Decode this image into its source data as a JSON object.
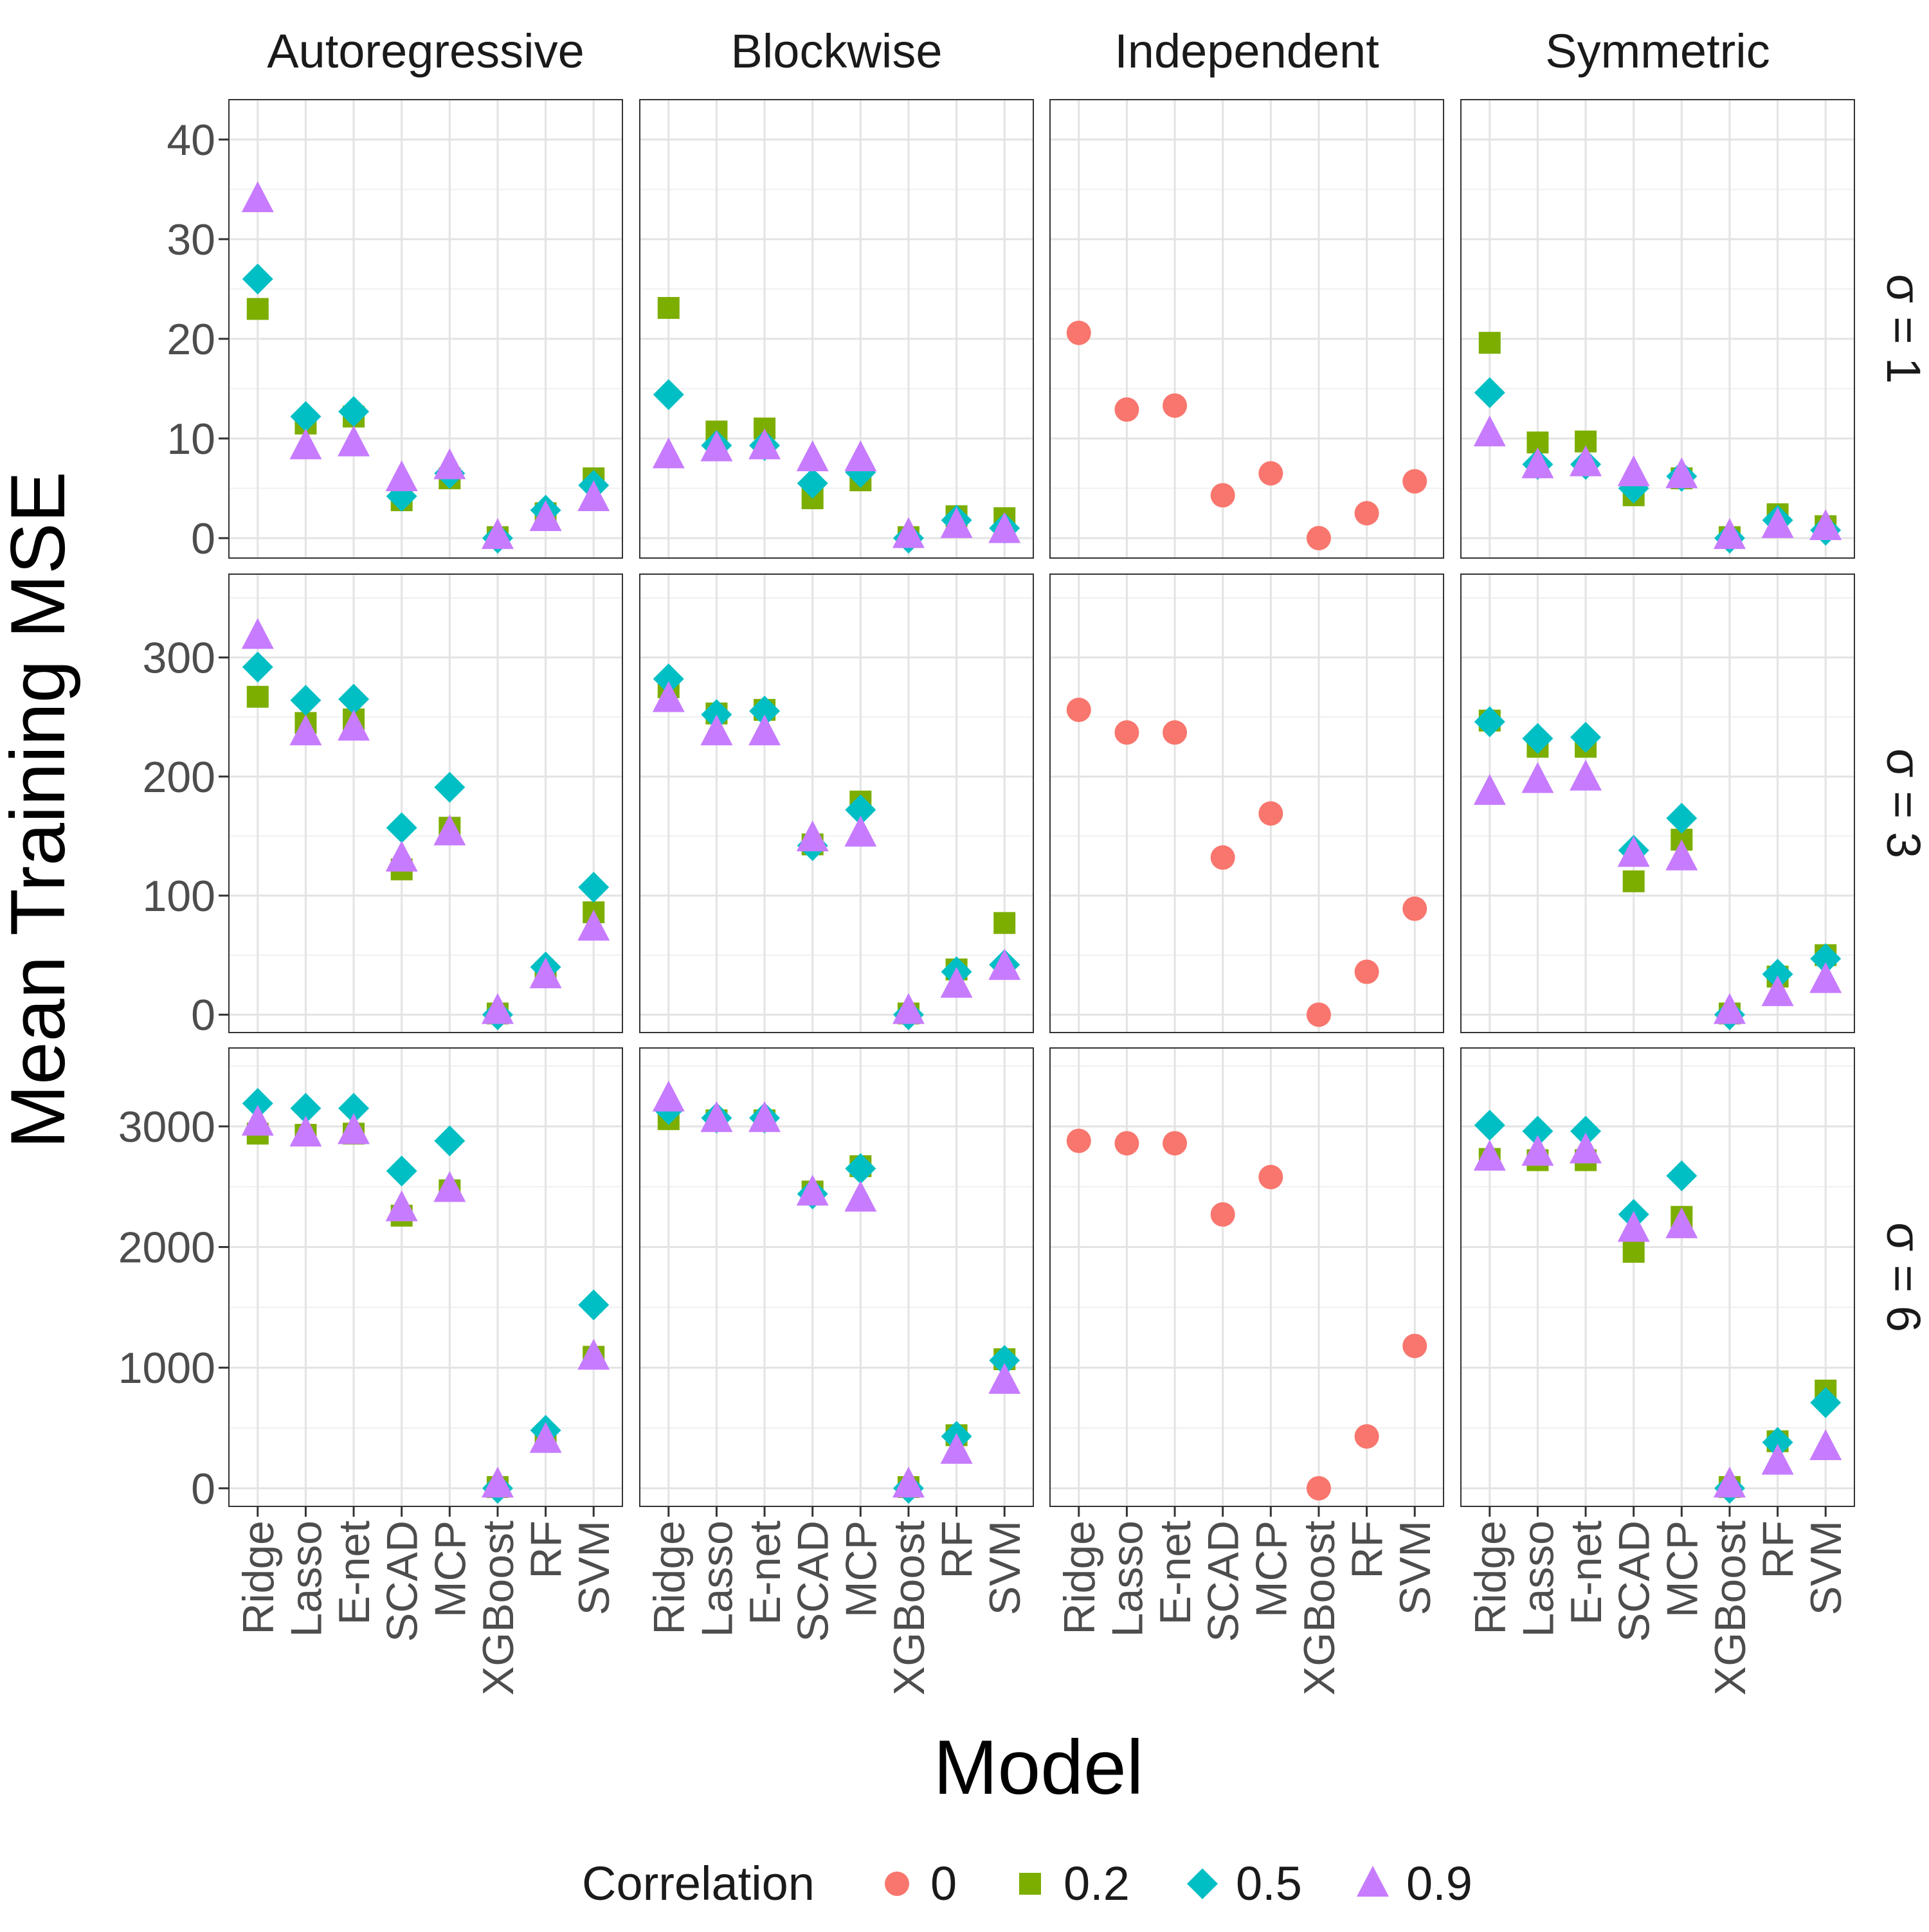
{
  "chart_data": {
    "type": "scatter",
    "facet_columns": [
      "Autoregressive",
      "Blockwise",
      "Independent",
      "Symmetric"
    ],
    "facet_rows": [
      "σ = 1",
      "σ = 3",
      "σ = 6"
    ],
    "categories": [
      "Ridge",
      "Lasso",
      "E-net",
      "SCAD",
      "MCP",
      "XGBoost",
      "RF",
      "SVM"
    ],
    "xlabel": "Model",
    "ylabel": "Mean Training MSE",
    "grid": true,
    "legend": {
      "position": "bottom",
      "title": "Correlation",
      "entries": [
        {
          "label": "0",
          "shape": "circle",
          "color": "#F8766D"
        },
        {
          "label": "0.2",
          "shape": "square",
          "color": "#7CAE00"
        },
        {
          "label": "0.5",
          "shape": "diamond",
          "color": "#00BFC4"
        },
        {
          "label": "0.9",
          "shape": "triangle",
          "color": "#C77CFF"
        }
      ]
    },
    "rows": [
      {
        "label": "σ = 1",
        "ylim": [
          -2,
          44
        ],
        "yticks": [
          0,
          10,
          20,
          30,
          40
        ],
        "panels": [
          {
            "column": "Autoregressive",
            "series": [
              {
                "name": "0.2",
                "values": [
                  23,
                  11.5,
                  12.2,
                  3.8,
                  6,
                  0.1,
                  2.5,
                  6
                ]
              },
              {
                "name": "0.5",
                "values": [
                  26,
                  12.2,
                  12.7,
                  4.2,
                  6.5,
                  0,
                  2.8,
                  5.3
                ]
              },
              {
                "name": "0.9",
                "values": [
                  34,
                  9.2,
                  9.5,
                  6,
                  7.2,
                  0.2,
                  2,
                  4
                ]
              }
            ]
          },
          {
            "column": "Blockwise",
            "series": [
              {
                "name": "0.2",
                "values": [
                  23.1,
                  10.7,
                  11,
                  4,
                  5.8,
                  0.1,
                  2.2,
                  2
                ]
              },
              {
                "name": "0.5",
                "values": [
                  14.4,
                  9.3,
                  9.3,
                  5.5,
                  6.6,
                  0,
                  1.8,
                  1
                ]
              },
              {
                "name": "0.9",
                "values": [
                  8.3,
                  9,
                  9.2,
                  8,
                  8,
                  0.3,
                  1.3,
                  0.8
                ]
              }
            ]
          },
          {
            "column": "Independent",
            "series": [
              {
                "name": "0",
                "values": [
                  20.6,
                  12.9,
                  13.3,
                  4.3,
                  6.5,
                  0,
                  2.5,
                  5.7
                ]
              }
            ]
          },
          {
            "column": "Symmetric",
            "series": [
              {
                "name": "0.2",
                "values": [
                  19.6,
                  9.6,
                  9.7,
                  4.3,
                  6,
                  0.1,
                  2.4,
                  1.2
                ]
              },
              {
                "name": "0.5",
                "values": [
                  14.6,
                  7.4,
                  7.4,
                  5,
                  6.2,
                  0,
                  1.8,
                  0.8
                ]
              },
              {
                "name": "0.9",
                "values": [
                  10.5,
                  7.3,
                  7.5,
                  6.5,
                  6.3,
                  0.2,
                  1.3,
                  1.1
                ]
              }
            ]
          }
        ]
      },
      {
        "label": "σ = 3",
        "ylim": [
          -15,
          370
        ],
        "yticks": [
          0,
          100,
          200,
          300
        ],
        "panels": [
          {
            "column": "Autoregressive",
            "series": [
              {
                "name": "0.2",
                "values": [
                  267,
                  245,
                  248,
                  122,
                  157,
                  1,
                  35,
                  86
                ]
              },
              {
                "name": "0.5",
                "values": [
                  292,
                  264,
                  265,
                  157,
                  191,
                  0,
                  40,
                  107
                ]
              },
              {
                "name": "0.9",
                "values": [
                  318,
                  237,
                  241,
                  131,
                  153,
                  3,
                  33,
                  73
                ]
              }
            ]
          },
          {
            "column": "Blockwise",
            "series": [
              {
                "name": "0.2",
                "values": [
                  275,
                  253,
                  256,
                  143,
                  179,
                  1,
                  38,
                  77
                ]
              },
              {
                "name": "0.5",
                "values": [
                  282,
                  252,
                  255,
                  142,
                  172,
                  0,
                  36,
                  42
                ]
              },
              {
                "name": "0.9",
                "values": [
                  265,
                  237,
                  237,
                  148,
                  152,
                  3,
                  25,
                  40
                ]
              }
            ]
          },
          {
            "column": "Independent",
            "series": [
              {
                "name": "0",
                "values": [
                  256,
                  237,
                  237,
                  132,
                  169,
                  0,
                  36,
                  89
                ]
              }
            ]
          },
          {
            "column": "Symmetric",
            "series": [
              {
                "name": "0.2",
                "values": [
                  247,
                  225,
                  225,
                  112,
                  147,
                  1,
                  32,
                  50
                ]
              },
              {
                "name": "0.5",
                "values": [
                  246,
                  232,
                  233,
                  138,
                  165,
                  0,
                  34,
                  47
                ]
              },
              {
                "name": "0.9",
                "values": [
                  187,
                  197,
                  199,
                  135,
                  132,
                  3,
                  18,
                  29
                ]
              }
            ]
          }
        ]
      },
      {
        "label": "σ = 6",
        "ylim": [
          -150,
          3650
        ],
        "yticks": [
          0,
          1000,
          2000,
          3000
        ],
        "panels": [
          {
            "column": "Autoregressive",
            "series": [
              {
                "name": "0.2",
                "values": [
                  2940,
                  2930,
                  2940,
                  2260,
                  2470,
                  10,
                  430,
                  1090
                ]
              },
              {
                "name": "0.5",
                "values": [
                  3190,
                  3150,
                  3150,
                  2630,
                  2880,
                  0,
                  480,
                  1520
                ]
              },
              {
                "name": "0.9",
                "values": [
                  3030,
                  2940,
                  2960,
                  2320,
                  2480,
                  30,
                  400,
                  1090
                ]
              }
            ]
          },
          {
            "column": "Blockwise",
            "series": [
              {
                "name": "0.2",
                "values": [
                  3060,
                  3050,
                  3050,
                  2460,
                  2670,
                  10,
                  440,
                  1070
                ]
              },
              {
                "name": "0.5",
                "values": [
                  3140,
                  3070,
                  3070,
                  2440,
                  2650,
                  0,
                  430,
                  1060
                ]
              },
              {
                "name": "0.9",
                "values": [
                  3230,
                  3060,
                  3060,
                  2450,
                  2400,
                  30,
                  310,
                  890
                ]
              }
            ]
          },
          {
            "column": "Independent",
            "series": [
              {
                "name": "0",
                "values": [
                  2880,
                  2860,
                  2860,
                  2270,
                  2580,
                  0,
                  430,
                  1180
                ]
              }
            ]
          },
          {
            "column": "Symmetric",
            "series": [
              {
                "name": "0.2",
                "values": [
                  2730,
                  2720,
                  2720,
                  1960,
                  2250,
                  10,
                  390,
                  810
                ]
              },
              {
                "name": "0.5",
                "values": [
                  3010,
                  2960,
                  2960,
                  2270,
                  2590,
                  0,
                  380,
                  710
                ]
              },
              {
                "name": "0.9",
                "values": [
                  2740,
                  2780,
                  2800,
                  2150,
                  2180,
                  30,
                  220,
                  340
                ]
              }
            ]
          }
        ]
      }
    ]
  }
}
